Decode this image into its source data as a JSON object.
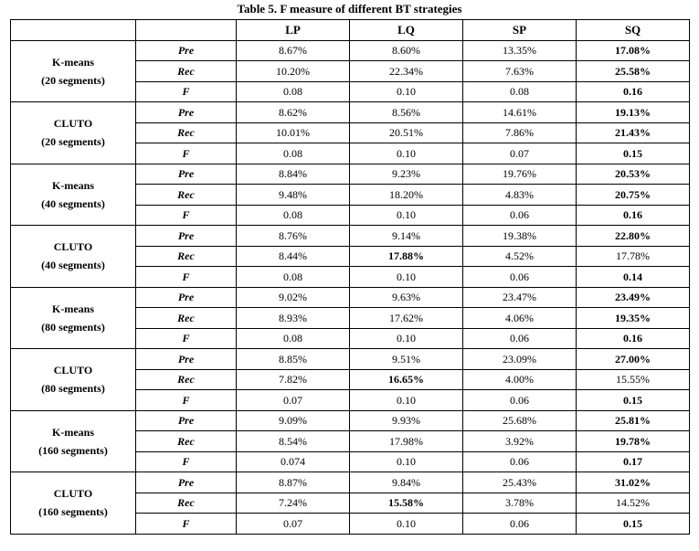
{
  "title": "Table 5. F measure of different BT strategies",
  "chart_data": {
    "type": "table",
    "columns": [
      "",
      "",
      "LP",
      "LQ",
      "SP",
      "SQ"
    ],
    "groups": [
      {
        "name": "K-means",
        "sub": "(20 segments)",
        "rows": [
          {
            "metric": "Pre",
            "values": [
              "8.67%",
              "8.60%",
              "13.35%",
              "17.08%"
            ],
            "bold": [
              false,
              false,
              false,
              true
            ]
          },
          {
            "metric": "Rec",
            "values": [
              "10.20%",
              "22.34%",
              "7.63%",
              "25.58%"
            ],
            "bold": [
              false,
              false,
              false,
              true
            ]
          },
          {
            "metric": "F",
            "values": [
              "0.08",
              "0.10",
              "0.08",
              "0.16"
            ],
            "bold": [
              false,
              false,
              false,
              true
            ]
          }
        ]
      },
      {
        "name": "CLUTO",
        "sub": "(20 segments)",
        "rows": [
          {
            "metric": "Pre",
            "values": [
              "8.62%",
              "8.56%",
              "14.61%",
              "19.13%"
            ],
            "bold": [
              false,
              false,
              false,
              true
            ]
          },
          {
            "metric": "Rec",
            "values": [
              "10.01%",
              "20.51%",
              "7.86%",
              "21.43%"
            ],
            "bold": [
              false,
              false,
              false,
              true
            ]
          },
          {
            "metric": "F",
            "values": [
              "0.08",
              "0.10",
              "0.07",
              "0.15"
            ],
            "bold": [
              false,
              false,
              false,
              true
            ]
          }
        ]
      },
      {
        "name": "K-means",
        "sub": "(40 segments)",
        "rows": [
          {
            "metric": "Pre",
            "values": [
              "8.84%",
              "9.23%",
              "19.76%",
              "20.53%"
            ],
            "bold": [
              false,
              false,
              false,
              true
            ]
          },
          {
            "metric": "Rec",
            "values": [
              "9.48%",
              "18.20%",
              "4.83%",
              "20.75%"
            ],
            "bold": [
              false,
              false,
              false,
              true
            ]
          },
          {
            "metric": "F",
            "values": [
              "0.08",
              "0.10",
              "0.06",
              "0.16"
            ],
            "bold": [
              false,
              false,
              false,
              true
            ]
          }
        ]
      },
      {
        "name": "CLUTO",
        "sub": "(40 segments)",
        "rows": [
          {
            "metric": "Pre",
            "values": [
              "8.76%",
              "9.14%",
              "19.38%",
              "22.80%"
            ],
            "bold": [
              false,
              false,
              false,
              true
            ]
          },
          {
            "metric": "Rec",
            "values": [
              "8.44%",
              "17.88%",
              "4.52%",
              "17.78%"
            ],
            "bold": [
              false,
              true,
              false,
              false
            ]
          },
          {
            "metric": "F",
            "values": [
              "0.08",
              "0.10",
              "0.06",
              "0.14"
            ],
            "bold": [
              false,
              false,
              false,
              true
            ]
          }
        ]
      },
      {
        "name": "K-means",
        "sub": "(80 segments)",
        "rows": [
          {
            "metric": "Pre",
            "values": [
              "9.02%",
              "9.63%",
              "23.47%",
              "23.49%"
            ],
            "bold": [
              false,
              false,
              false,
              true
            ]
          },
          {
            "metric": "Rec",
            "values": [
              "8.93%",
              "17.62%",
              "4.06%",
              "19.35%"
            ],
            "bold": [
              false,
              false,
              false,
              true
            ]
          },
          {
            "metric": "F",
            "values": [
              "0.08",
              "0.10",
              "0.06",
              "0.16"
            ],
            "bold": [
              false,
              false,
              false,
              true
            ]
          }
        ]
      },
      {
        "name": "CLUTO",
        "sub": "(80 segments)",
        "rows": [
          {
            "metric": "Pre",
            "values": [
              "8.85%",
              "9.51%",
              "23.09%",
              "27.00%"
            ],
            "bold": [
              false,
              false,
              false,
              true
            ]
          },
          {
            "metric": "Rec",
            "values": [
              "7.82%",
              "16.65%",
              "4.00%",
              "15.55%"
            ],
            "bold": [
              false,
              true,
              false,
              false
            ]
          },
          {
            "metric": "F",
            "values": [
              "0.07",
              "0.10",
              "0.06",
              "0.15"
            ],
            "bold": [
              false,
              false,
              false,
              true
            ]
          }
        ]
      },
      {
        "name": "K-means",
        "sub": "(160 segments)",
        "rows": [
          {
            "metric": "Pre",
            "values": [
              "9.09%",
              "9.93%",
              "25.68%",
              "25.81%"
            ],
            "bold": [
              false,
              false,
              false,
              true
            ]
          },
          {
            "metric": "Rec",
            "values": [
              "8.54%",
              "17.98%",
              "3.92%",
              "19.78%"
            ],
            "bold": [
              false,
              false,
              false,
              true
            ]
          },
          {
            "metric": "F",
            "values": [
              "0.074",
              "0.10",
              "0.06",
              "0.17"
            ],
            "bold": [
              false,
              false,
              false,
              true
            ]
          }
        ]
      },
      {
        "name": "CLUTO",
        "sub": "(160 segments)",
        "rows": [
          {
            "metric": "Pre",
            "values": [
              "8.87%",
              "9.84%",
              "25.43%",
              "31.02%"
            ],
            "bold": [
              false,
              false,
              false,
              true
            ]
          },
          {
            "metric": "Rec",
            "values": [
              "7.24%",
              "15.58%",
              "3.78%",
              "14.52%"
            ],
            "bold": [
              false,
              true,
              false,
              false
            ]
          },
          {
            "metric": "F",
            "values": [
              "0.07",
              "0.10",
              "0.06",
              "0.15"
            ],
            "bold": [
              false,
              false,
              false,
              true
            ]
          }
        ]
      }
    ]
  }
}
